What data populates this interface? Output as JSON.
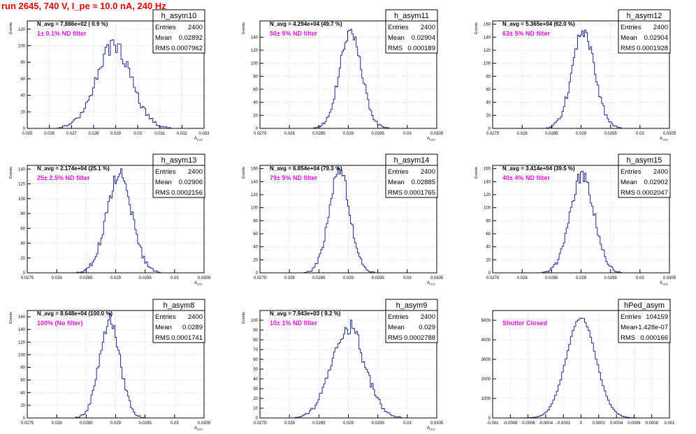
{
  "run_title": "run 2645,   740 V, I_pe ≈ 10.0 nA, 240 Hz",
  "colors": {
    "histogram": "#1c2a8c",
    "annotation": "#e012e0",
    "title": "#e00000",
    "grid": "#cccccc"
  },
  "chart_data": [
    {
      "type": "bar",
      "title": "h_asym10",
      "stats": {
        "entries_label": "Entries",
        "entries": "2400",
        "mean_label": "Mean",
        "mean": "0.02892",
        "rms_label": "RMS",
        "rms": "0.0007962"
      },
      "navg_label": "N_avg = 7.886e+02 ( 0.9 %)",
      "annotation": "1± 0.1% ND filter",
      "xlabel": "A_LED",
      "ylabel": "Events",
      "xlim": [
        0.025,
        0.033
      ],
      "ylim": [
        0,
        130
      ],
      "xticks": [
        0.025,
        0.026,
        0.027,
        0.028,
        0.029,
        0.03,
        0.031,
        0.032,
        0.033
      ],
      "xtick_labels": [
        "0.025",
        "0.026",
        "0.027",
        "0.028",
        "0.029",
        "0.03",
        "0.031",
        "0.032",
        "0.033"
      ],
      "yticks": [
        0,
        20,
        40,
        60,
        80,
        100,
        120
      ],
      "ytick_labels": [
        "0",
        "20",
        "40",
        "60",
        "80",
        "100",
        "120"
      ],
      "bins": 100,
      "mean": 0.02892,
      "sigma": 0.0007962,
      "peak": 100,
      "grid": true
    },
    {
      "type": "bar",
      "title": "h_asym11",
      "stats": {
        "entries_label": "Entries",
        "entries": "2400",
        "mean_label": "Mean",
        "mean": "0.02904",
        "rms_label": "RMS",
        "rms": "0.000189"
      },
      "navg_label": "N_avg = 4.294e+04 (49.7 %)",
      "annotation": "50± 5% ND filter",
      "xlabel": "A_LED",
      "ylabel": "Events",
      "xlim": [
        0.0275,
        0.0305
      ],
      "ylim": [
        0,
        165
      ],
      "xticks": [
        0.0275,
        0.028,
        0.0285,
        0.029,
        0.0295,
        0.03,
        0.0305
      ],
      "xtick_labels": [
        "0.0275",
        "0.028",
        "0.0285",
        "0.029",
        "0.0295",
        "0.03",
        "0.0305"
      ],
      "yticks": [
        0,
        20,
        40,
        60,
        80,
        100,
        120,
        140
      ],
      "ytick_labels": [
        "0",
        "20",
        "40",
        "60",
        "80",
        "100",
        "120",
        "140"
      ],
      "bins": 125,
      "mean": 0.02904,
      "sigma": 0.000189,
      "peak": 148,
      "grid": true
    },
    {
      "type": "bar",
      "title": "h_asym12",
      "stats": {
        "entries_label": "Entries",
        "entries": "2400",
        "mean_label": "Mean",
        "mean": "0.02904",
        "rms_label": "RMS",
        "rms": "0.0001928"
      },
      "navg_label": "N_avg = 5.365e+04 (62.0 %)",
      "annotation": "63± 5% ND filter",
      "xlabel": "A_LED",
      "ylabel": "Events",
      "xlim": [
        0.0275,
        0.0305
      ],
      "ylim": [
        0,
        165
      ],
      "xticks": [
        0.0275,
        0.028,
        0.0285,
        0.029,
        0.0295,
        0.03,
        0.0305
      ],
      "xtick_labels": [
        "0.0275",
        "0.028",
        "0.0285",
        "0.029",
        "0.0295",
        "0.03",
        "0.0305"
      ],
      "yticks": [
        0,
        20,
        40,
        60,
        80,
        100,
        120,
        140,
        160
      ],
      "ytick_labels": [
        "0",
        "20",
        "40",
        "60",
        "80",
        "100",
        "120",
        "140",
        "160"
      ],
      "bins": 125,
      "mean": 0.02904,
      "sigma": 0.0001928,
      "peak": 148,
      "grid": true
    },
    {
      "type": "bar",
      "title": "h_asym13",
      "stats": {
        "entries_label": "Entries",
        "entries": "2400",
        "mean_label": "Mean",
        "mean": "0.02906",
        "rms_label": "RMS",
        "rms": "0.0002156"
      },
      "navg_label": "N_avg = 2.174e+04 (25.1 %)",
      "annotation": "25± 2.5% ND filter",
      "xlabel": "A_LED",
      "ylabel": "Events",
      "xlim": [
        0.0275,
        0.0305
      ],
      "ylim": [
        0,
        145
      ],
      "xticks": [
        0.0275,
        0.028,
        0.0285,
        0.029,
        0.0295,
        0.03,
        0.0305
      ],
      "xtick_labels": [
        "0.0275",
        "0.028",
        "0.0285",
        "0.029",
        "0.0295",
        "0.03",
        "0.0305"
      ],
      "yticks": [
        0,
        20,
        40,
        60,
        80,
        100,
        120,
        140
      ],
      "ytick_labels": [
        "0",
        "20",
        "40",
        "60",
        "80",
        "100",
        "120",
        "140"
      ],
      "bins": 125,
      "mean": 0.02906,
      "sigma": 0.0002156,
      "peak": 132,
      "grid": true
    },
    {
      "type": "bar",
      "title": "h_asym14",
      "stats": {
        "entries_label": "Entries",
        "entries": "2400",
        "mean_label": "Mean",
        "mean": "0.02885",
        "rms_label": "RMS",
        "rms": "0.0001765"
      },
      "navg_label": "N_avg = 6.854e+04 (79.3 %)",
      "annotation": "79± 5% ND filter",
      "xlabel": "A_LED",
      "ylabel": "Events",
      "xlim": [
        0.0275,
        0.0305
      ],
      "ylim": [
        0,
        165
      ],
      "xticks": [
        0.0275,
        0.028,
        0.0285,
        0.029,
        0.0295,
        0.03,
        0.0305
      ],
      "xtick_labels": [
        "0.0275",
        "0.028",
        "0.0285",
        "0.029",
        "0.0295",
        "0.03",
        "0.0305"
      ],
      "yticks": [
        0,
        20,
        40,
        60,
        80,
        100,
        120,
        140,
        160
      ],
      "ytick_labels": [
        "0",
        "20",
        "40",
        "60",
        "80",
        "100",
        "120",
        "140",
        "160"
      ],
      "bins": 125,
      "mean": 0.02885,
      "sigma": 0.0001765,
      "peak": 155,
      "grid": true
    },
    {
      "type": "bar",
      "title": "h_asym15",
      "stats": {
        "entries_label": "Entries",
        "entries": "2400",
        "mean_label": "Mean",
        "mean": "0.02902",
        "rms_label": "RMS",
        "rms": "0.0002047"
      },
      "navg_label": "N_avg = 3.414e+04 (39.5 %)",
      "annotation": "40± 4% ND filter",
      "xlabel": "A_LED",
      "ylabel": "Events",
      "xlim": [
        0.0275,
        0.0305
      ],
      "ylim": [
        0,
        165
      ],
      "xticks": [
        0.0275,
        0.028,
        0.0285,
        0.029,
        0.0295,
        0.03,
        0.0305
      ],
      "xtick_labels": [
        "0.0275",
        "0.028",
        "0.0285",
        "0.029",
        "0.0295",
        "0.03",
        "0.0305"
      ],
      "yticks": [
        0,
        20,
        40,
        60,
        80,
        100,
        120,
        140,
        160
      ],
      "ytick_labels": [
        "0",
        "20",
        "40",
        "60",
        "80",
        "100",
        "120",
        "140",
        "160"
      ],
      "bins": 125,
      "mean": 0.02902,
      "sigma": 0.0002047,
      "peak": 150,
      "grid": true
    },
    {
      "type": "bar",
      "title": "h_asym8",
      "stats": {
        "entries_label": "Entries",
        "entries": "2400",
        "mean_label": "Mean",
        "mean": "0.0289",
        "rms_label": "RMS",
        "rms": "0.0001741"
      },
      "navg_label": "N_avg = 8.648e+04 (100.0 %)",
      "annotation": "100% (No filter)",
      "xlabel": "A_LED",
      "ylabel": "Events",
      "xlim": [
        0.0275,
        0.0305
      ],
      "ylim": [
        0,
        170
      ],
      "xticks": [
        0.0275,
        0.028,
        0.0285,
        0.029,
        0.0295,
        0.03,
        0.0305
      ],
      "xtick_labels": [
        "0.0275",
        "0.028",
        "0.0285",
        "0.029",
        "0.0295",
        "0.03",
        "0.0305"
      ],
      "yticks": [
        0,
        20,
        40,
        60,
        80,
        100,
        120,
        140,
        160
      ],
      "ytick_labels": [
        "0",
        "20",
        "40",
        "60",
        "80",
        "100",
        "120",
        "140",
        "160"
      ],
      "bins": 125,
      "mean": 0.0289,
      "sigma": 0.0001741,
      "peak": 155,
      "grid": true
    },
    {
      "type": "bar",
      "title": "h_asym9",
      "stats": {
        "entries_label": "Entries",
        "entries": "2400",
        "mean_label": "Mean",
        "mean": "0.029",
        "rms_label": "RMS",
        "rms": "0.0002788"
      },
      "navg_label": "N_avg = 7.943e+03 ( 9.2 %)",
      "annotation": "10± 1% ND filter",
      "xlabel": "A_LED",
      "ylabel": "Events",
      "xlim": [
        0.0275,
        0.0305
      ],
      "ylim": [
        0,
        110
      ],
      "xticks": [
        0.0275,
        0.028,
        0.0285,
        0.029,
        0.0295,
        0.03,
        0.0305
      ],
      "xtick_labels": [
        "0.0275",
        "0.028",
        "0.0285",
        "0.029",
        "0.0295",
        "0.03",
        "0.0305"
      ],
      "yticks": [
        0,
        10,
        20,
        30,
        40,
        50,
        60,
        70,
        80,
        90,
        100
      ],
      "ytick_labels": [
        "0",
        "10",
        "20",
        "30",
        "40",
        "50",
        "60",
        "70",
        "80",
        "90",
        "100"
      ],
      "bins": 125,
      "mean": 0.029,
      "sigma": 0.0002788,
      "peak": 93,
      "grid": true
    },
    {
      "type": "bar",
      "title": "hPed_asym",
      "stats": {
        "entries_label": "Entries",
        "entries": "104159",
        "mean_label": "Mean",
        "mean": "-1.428e-07",
        "rms_label": "RMS",
        "rms": "0.000166"
      },
      "navg_label": "",
      "annotation": "Shutter Closed",
      "xlabel": "",
      "ylabel": "",
      "xlim": [
        -0.001,
        0.001
      ],
      "ylim": [
        0,
        5500
      ],
      "xticks": [
        -0.001,
        -0.0008,
        -0.0006,
        -0.0004,
        -0.0002,
        0,
        0.0002,
        0.0004,
        0.0006,
        0.0008,
        0.001
      ],
      "xtick_labels": [
        "-0.001",
        "-0.0008",
        "-0.0006",
        "-0.0004",
        "-0.0002",
        "0",
        "0.0002",
        "0.0004",
        "0.0006",
        "0.0008",
        "0.001"
      ],
      "yticks": [
        0,
        1000,
        2000,
        3000,
        4000,
        5000
      ],
      "ytick_labels": [
        "0",
        "1000",
        "2000",
        "3000",
        "4000",
        "5000"
      ],
      "bins": 100,
      "mean": 0,
      "sigma": 0.000166,
      "peak": 5150,
      "grid": true
    }
  ]
}
